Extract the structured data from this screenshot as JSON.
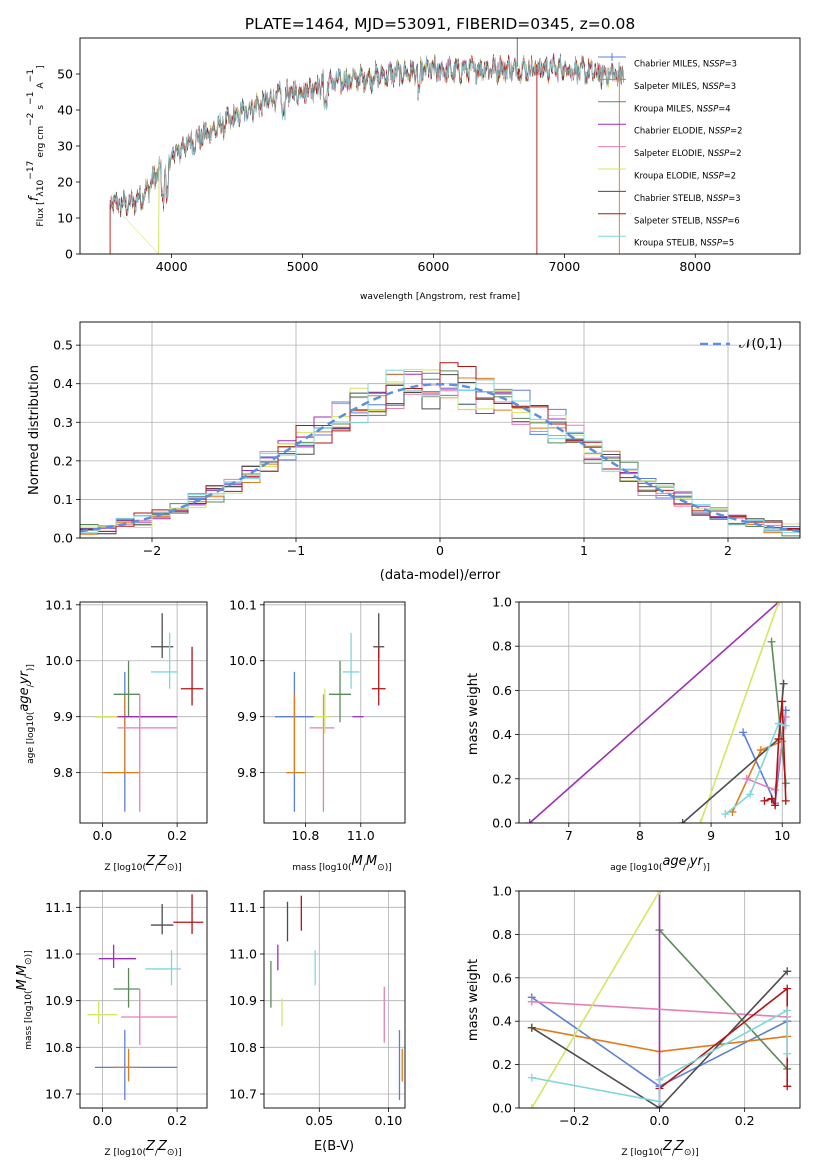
{
  "figure_title": "PLATE=1464, MJD=53091, FIBERID=0345, z=0.08",
  "fit_colors": [
    "#5b7fd6",
    "#e07b1a",
    "#5d8a5a",
    "#9c2fb5",
    "#e67fb5",
    "#d6e563",
    "#4d4d4d",
    "#b21414",
    "#7fd6dd"
  ],
  "chart_data": [
    {
      "id": "spectrum",
      "type": "line",
      "title": "PLATE=1464, MJD=53091, FIBERID=0345, z=0.08",
      "xlabel": "wavelength [Angstrom, rest frame]",
      "ylabel": "Flux [f_λ 10^-17 erg cm^-2 s^-1 A^-1]",
      "xlim": [
        3300,
        8800
      ],
      "ylim": [
        0,
        60
      ],
      "xticks": [
        4000,
        5000,
        6000,
        7000,
        8000
      ],
      "yticks": [
        0,
        10,
        20,
        30,
        40,
        50
      ],
      "grid": false,
      "legend_position": "right",
      "series": [
        {
          "name": "Chabrier MILES, N_SSP=3"
        },
        {
          "name": "Salpeter MILES, N_SSP=3"
        },
        {
          "name": "Kroupa MILES, N_SSP=4"
        },
        {
          "name": "Chabrier ELODIE, N_SSP=2"
        },
        {
          "name": "Salpeter ELODIE, N_SSP=2"
        },
        {
          "name": "Kroupa ELODIE, N_SSP=2"
        },
        {
          "name": "Chabrier STELIB, N_SSP=3"
        },
        {
          "name": "Salpeter STELIB, N_SSP=6"
        },
        {
          "name": "Kroupa STELIB, N_SSP=5"
        }
      ],
      "continuum": {
        "x": [
          3530,
          3700,
          3800,
          3900,
          4000,
          4100,
          4200,
          4300,
          4400,
          4500,
          4600,
          4700,
          4800,
          4900,
          5000,
          5100,
          5200,
          5400,
          5600,
          5800,
          6000,
          6200,
          6400,
          6600,
          6800,
          7000,
          7200,
          7300,
          7450
        ],
        "y": [
          14,
          14,
          17,
          23,
          27,
          30,
          32,
          34,
          36,
          38.5,
          40.5,
          42,
          43.5,
          44.5,
          45.5,
          46.5,
          47.5,
          48.5,
          49.5,
          50.5,
          51,
          51,
          51.5,
          51.5,
          51.5,
          51.5,
          50.5,
          50,
          50
        ]
      }
    },
    {
      "id": "residuals",
      "type": "histogram",
      "xlabel": "(data-model)/error",
      "ylabel": "Normed distribution",
      "xlim": [
        -2.5,
        2.5
      ],
      "ylim": [
        0,
        0.56
      ],
      "xticks": [
        -2,
        -1,
        0,
        1,
        2
      ],
      "yticks": [
        0.0,
        0.1,
        0.2,
        0.3,
        0.4,
        0.5
      ],
      "grid": true,
      "legend_position": "top-right",
      "reference": {
        "name": "𝒩(0,1)",
        "mean": 0,
        "sigma": 1,
        "style": "dashed"
      },
      "bin_width": 0.125
    },
    {
      "id": "age-vs-Z",
      "type": "errorbar",
      "xlabel": "Z [log10(Z/Z⊙)]",
      "ylabel": "age [log10(age/yr)]",
      "xlim": [
        -0.06,
        0.28
      ],
      "ylim": [
        9.71,
        10.105
      ],
      "xticks": [
        0.0,
        0.2
      ],
      "yticks": [
        9.8,
        9.9,
        10.0,
        10.1
      ],
      "grid": true,
      "points": [
        {
          "x": 0.06,
          "xerr": [
            0.0,
            0.14
          ],
          "y": 9.9,
          "yerr": [
            0.17,
            0.08
          ]
        },
        {
          "x": 0.06,
          "xerr": [
            0.06,
            0.04
          ],
          "y": 9.8,
          "yerr": [
            0.0,
            0.14
          ]
        },
        {
          "x": 0.07,
          "xerr": [
            0.04,
            0.03
          ],
          "y": 9.94,
          "yerr": [
            0.04,
            0.06
          ]
        },
        {
          "x": 0.04,
          "xerr": [
            0.06,
            0.16
          ],
          "y": 9.9,
          "yerr": [
            0.0,
            0.0
          ]
        },
        {
          "x": 0.1,
          "xerr": [
            0.06,
            0.1
          ],
          "y": 9.88,
          "yerr": [
            0.15,
            0.06
          ]
        },
        {
          "x": 0.0,
          "xerr": [
            0.02,
            0.04
          ],
          "y": 9.9,
          "yerr": [
            0.0,
            0.0
          ]
        },
        {
          "x": 0.16,
          "xerr": [
            0.03,
            0.03
          ],
          "y": 10.025,
          "yerr": [
            0.02,
            0.06
          ]
        },
        {
          "x": 0.24,
          "xerr": [
            0.03,
            0.03
          ],
          "y": 9.95,
          "yerr": [
            0.03,
            0.075
          ]
        },
        {
          "x": 0.18,
          "xerr": [
            0.05,
            0.02
          ],
          "y": 9.98,
          "yerr": [
            0.03,
            0.07
          ]
        }
      ]
    },
    {
      "id": "age-vs-mass",
      "type": "errorbar",
      "xlabel": "mass [log10(M/M⊙)]",
      "ylabel": "",
      "xlim": [
        10.65,
        11.16
      ],
      "ylim": [
        9.71,
        10.105
      ],
      "xticks": [
        10.8,
        11.0
      ],
      "yticks": [
        9.8,
        9.9,
        10.0,
        10.1
      ],
      "grid": true,
      "points": [
        {
          "x": 10.76,
          "xerr": [
            0.07,
            0.08
          ],
          "y": 9.9,
          "yerr": [
            0.17,
            0.08
          ]
        },
        {
          "x": 10.76,
          "xerr": [
            0.03,
            0.04
          ],
          "y": 9.8,
          "yerr": [
            0.0,
            0.14
          ]
        },
        {
          "x": 10.925,
          "xerr": [
            0.04,
            0.04
          ],
          "y": 9.94,
          "yerr": [
            0.05,
            0.06
          ]
        },
        {
          "x": 10.99,
          "xerr": [
            0.02,
            0.02
          ],
          "y": 9.9,
          "yerr": [
            0.0,
            0.0
          ]
        },
        {
          "x": 10.865,
          "xerr": [
            0.05,
            0.04
          ],
          "y": 9.88,
          "yerr": [
            0.15,
            0.06
          ]
        },
        {
          "x": 10.87,
          "xerr": [
            0.04,
            0.02
          ],
          "y": 9.9,
          "yerr": [
            0.03,
            0.05
          ]
        },
        {
          "x": 11.065,
          "xerr": [
            0.02,
            0.02
          ],
          "y": 10.025,
          "yerr": [
            0.02,
            0.06
          ]
        },
        {
          "x": 11.065,
          "xerr": [
            0.025,
            0.025
          ],
          "y": 9.95,
          "yerr": [
            0.03,
            0.075
          ]
        },
        {
          "x": 10.965,
          "xerr": [
            0.03,
            0.03
          ],
          "y": 9.98,
          "yerr": [
            0.03,
            0.07
          ]
        }
      ]
    },
    {
      "id": "weight-vs-age",
      "type": "line",
      "xlabel": "age [log10(age/yr)]",
      "ylabel": "mass weight",
      "xlim": [
        6.3,
        10.25
      ],
      "ylim": [
        0,
        1.0
      ],
      "xticks": [
        7,
        8,
        9,
        10
      ],
      "yticks": [
        0.0,
        0.2,
        0.4,
        0.6,
        0.8,
        1.0
      ],
      "grid": true,
      "series": [
        {
          "x": [
            9.45,
            9.9,
            10.05
          ],
          "y": [
            0.41,
            0.09,
            0.51
          ]
        },
        {
          "x": [
            9.3,
            9.7,
            10.0
          ],
          "y": [
            0.05,
            0.33,
            0.37
          ]
        },
        {
          "x": [
            9.85,
            10.05
          ],
          "y": [
            0.82,
            0.18
          ]
        },
        {
          "x": [
            6.45,
            9.95
          ],
          "y": [
            0.0,
            1.0
          ]
        },
        {
          "x": [
            9.5,
            9.9,
            10.05
          ],
          "y": [
            0.2,
            0.15,
            0.48
          ]
        },
        {
          "x": [
            8.85,
            9.95
          ],
          "y": [
            0.0,
            1.0
          ]
        },
        {
          "x": [
            8.6,
            9.95,
            10.02
          ],
          "y": [
            0.0,
            0.38,
            0.63
          ]
        },
        {
          "x": [
            9.75,
            9.85,
            9.9,
            9.95,
            10.0,
            10.05
          ],
          "y": [
            0.1,
            0.11,
            0.08,
            0.38,
            0.55,
            0.1
          ]
        },
        {
          "x": [
            9.2,
            9.55,
            9.95,
            10.05
          ],
          "y": [
            0.04,
            0.13,
            0.45,
            0.44
          ]
        }
      ]
    },
    {
      "id": "mass-vs-Z",
      "type": "errorbar",
      "xlabel": "Z [log10(Z/Z⊙)]",
      "ylabel": "mass [log10(M/M⊙)]",
      "xlim": [
        -0.06,
        0.28
      ],
      "ylim": [
        10.67,
        11.135
      ],
      "xticks": [
        0.0,
        0.2
      ],
      "yticks": [
        10.7,
        10.8,
        10.9,
        11.0,
        11.1
      ],
      "grid": true,
      "points": [
        {
          "x": 0.06,
          "xerr": [
            0.08,
            0.14
          ],
          "y": 10.757,
          "yerr": [
            0.07,
            0.08
          ]
        },
        {
          "x": 0.07,
          "xerr": [
            0.04,
            0.03
          ],
          "y": 10.757,
          "yerr": [
            0.03,
            0.04
          ]
        },
        {
          "x": 0.07,
          "xerr": [
            0.04,
            0.03
          ],
          "y": 10.925,
          "yerr": [
            0.04,
            0.045
          ]
        },
        {
          "x": 0.03,
          "xerr": [
            0.04,
            0.06
          ],
          "y": 10.99,
          "yerr": [
            0.02,
            0.03
          ]
        },
        {
          "x": 0.1,
          "xerr": [
            0.05,
            0.1
          ],
          "y": 10.865,
          "yerr": [
            0.06,
            0.06
          ]
        },
        {
          "x": -0.01,
          "xerr": [
            0.03,
            0.05
          ],
          "y": 10.87,
          "yerr": [
            0.02,
            0.03
          ]
        },
        {
          "x": 0.16,
          "xerr": [
            0.03,
            0.03
          ],
          "y": 11.062,
          "yerr": [
            0.02,
            0.045
          ]
        },
        {
          "x": 0.24,
          "xerr": [
            0.05,
            0.03
          ],
          "y": 11.068,
          "yerr": [
            0.025,
            0.06
          ]
        },
        {
          "x": 0.185,
          "xerr": [
            0.07,
            0.025
          ],
          "y": 10.968,
          "yerr": [
            0.035,
            0.04
          ]
        }
      ]
    },
    {
      "id": "mass-vs-EBV",
      "type": "errorbar",
      "xlabel": "E(B-V)",
      "ylabel": "",
      "xlim": [
        0.01,
        0.112
      ],
      "ylim": [
        10.67,
        11.135
      ],
      "xticks": [
        0.05,
        0.1
      ],
      "yticks": [
        10.7,
        10.8,
        10.9,
        11.0,
        11.1
      ],
      "grid": true,
      "points": [
        {
          "x": 0.108,
          "xerr": [
            0.0,
            0.0
          ],
          "y": 10.757,
          "yerr": [
            0.07,
            0.08
          ]
        },
        {
          "x": 0.11,
          "xerr": [
            0.0,
            0.0
          ],
          "y": 10.757,
          "yerr": [
            0.03,
            0.04
          ]
        },
        {
          "x": 0.015,
          "xerr": [
            0.0,
            0.0
          ],
          "y": 10.93,
          "yerr": [
            0.045,
            0.055
          ]
        },
        {
          "x": 0.02,
          "xerr": [
            0.0,
            0.0
          ],
          "y": 10.99,
          "yerr": [
            0.025,
            0.03
          ]
        },
        {
          "x": 0.097,
          "xerr": [
            0.0,
            0.0
          ],
          "y": 10.865,
          "yerr": [
            0.055,
            0.065
          ]
        },
        {
          "x": 0.023,
          "xerr": [
            0.0,
            0.0
          ],
          "y": 10.87,
          "yerr": [
            0.025,
            0.035
          ]
        },
        {
          "x": 0.027,
          "xerr": [
            0.0,
            0.0
          ],
          "y": 11.062,
          "yerr": [
            0.035,
            0.05
          ]
        },
        {
          "x": 0.037,
          "xerr": [
            0.0,
            0.0
          ],
          "y": 11.075,
          "yerr": [
            0.025,
            0.05
          ]
        },
        {
          "x": 0.047,
          "xerr": [
            0.0,
            0.0
          ],
          "y": 10.968,
          "yerr": [
            0.035,
            0.04
          ]
        }
      ]
    },
    {
      "id": "weight-vs-Z",
      "type": "line",
      "xlabel": "Z [log10(Z/Z⊙)]",
      "ylabel": "mass weight",
      "xlim": [
        -0.33,
        0.33
      ],
      "ylim": [
        0,
        1.0
      ],
      "xticks": [
        -0.2,
        0.0,
        0.2
      ],
      "yticks": [
        0.0,
        0.2,
        0.4,
        0.6,
        0.8,
        1.0
      ],
      "grid": true,
      "series": [
        {
          "x": [
            -0.3,
            0.0,
            0.3
          ],
          "y": [
            0.51,
            0.1,
            0.4
          ]
        },
        {
          "x": [
            -0.3,
            0.0,
            0.3
          ],
          "y": [
            0.37,
            0.26,
            0.33
          ]
        },
        {
          "x": [
            0.0,
            0.3
          ],
          "y": [
            0.82,
            0.18
          ]
        },
        {
          "x": [
            0.0,
            0.0
          ],
          "y": [
            0.0,
            1.0
          ]
        },
        {
          "x": [
            -0.3,
            0.3
          ],
          "y": [
            0.49,
            0.42
          ]
        },
        {
          "x": [
            -0.3,
            0.0
          ],
          "y": [
            0.0,
            1.0
          ]
        },
        {
          "x": [
            -0.3,
            0.0,
            0.3
          ],
          "y": [
            0.37,
            0.0,
            0.63
          ]
        },
        {
          "x": [
            0.0,
            0.3,
            0.3
          ],
          "y": [
            0.09,
            0.55,
            0.1
          ]
        },
        {
          "x": [
            -0.3,
            0.0,
            0.0,
            0.3,
            0.3
          ],
          "y": [
            0.14,
            0.03,
            0.13,
            0.45,
            0.25
          ]
        }
      ]
    }
  ]
}
